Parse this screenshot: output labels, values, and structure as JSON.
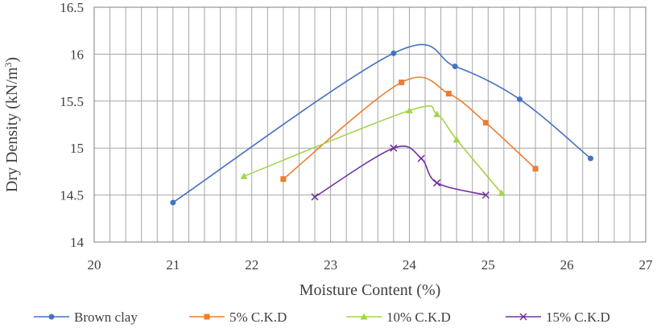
{
  "chart_data": {
    "type": "line",
    "xlabel": "Moisture Content (%)",
    "ylabel": "Dry Density (kN/m",
    "ylabel_sup": "3",
    "ylabel_end": ")",
    "xlim": [
      20,
      27
    ],
    "ylim": [
      14,
      16.5
    ],
    "x_ticks": [
      "20",
      "21",
      "22",
      "23",
      "24",
      "25",
      "26",
      "27"
    ],
    "y_ticks": [
      "14",
      "14.5",
      "15",
      "15.5",
      "16",
      "16.5"
    ],
    "grid": true,
    "legend_position": "bottom",
    "series": [
      {
        "name": "Brown clay",
        "color": "#4472c4",
        "marker": "circle",
        "points": [
          [
            21.0,
            14.42
          ],
          [
            23.8,
            16.01
          ],
          [
            24.58,
            15.87
          ],
          [
            25.4,
            15.52
          ],
          [
            26.3,
            14.89
          ]
        ]
      },
      {
        "name": "5% C.K.D",
        "color": "#ed7d31",
        "marker": "square",
        "points": [
          [
            22.4,
            14.67
          ],
          [
            23.9,
            15.7
          ],
          [
            24.5,
            15.58
          ],
          [
            24.97,
            15.27
          ],
          [
            25.6,
            14.78
          ]
        ]
      },
      {
        "name": "10% C.K.D",
        "color": "#a5d34e",
        "marker": "triangle",
        "points": [
          [
            21.9,
            14.7
          ],
          [
            24.0,
            15.4
          ],
          [
            24.35,
            15.36
          ],
          [
            24.6,
            15.09
          ],
          [
            25.17,
            14.52
          ]
        ]
      },
      {
        "name": "15% C.K.D",
        "color": "#7030a0",
        "marker": "x",
        "points": [
          [
            22.8,
            14.48
          ],
          [
            23.8,
            15.0
          ],
          [
            24.15,
            14.89
          ],
          [
            24.35,
            14.63
          ],
          [
            24.97,
            14.5
          ]
        ]
      }
    ]
  }
}
